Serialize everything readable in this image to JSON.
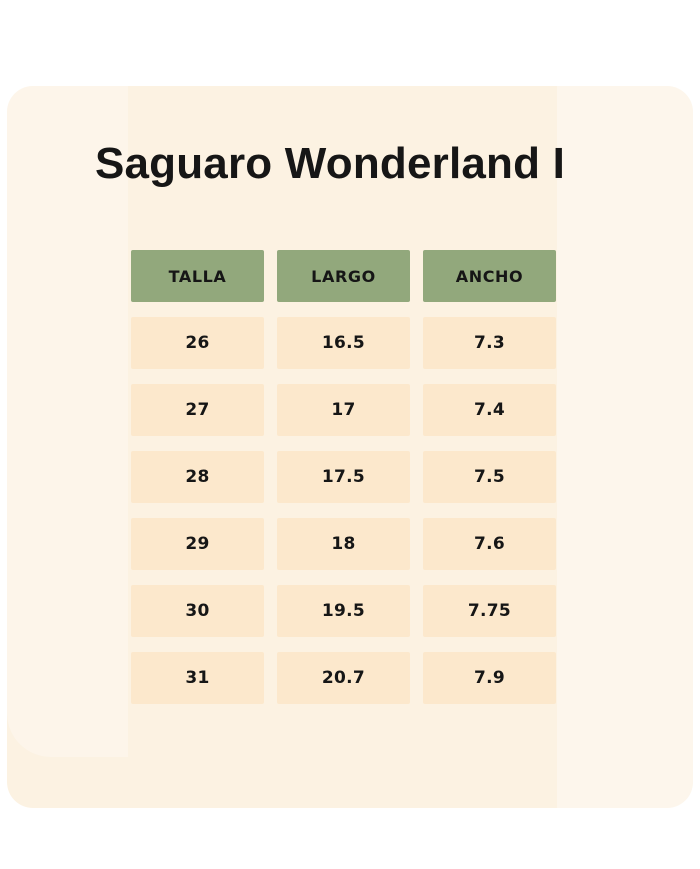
{
  "chart_data": {
    "type": "table",
    "title": "Saguaro Wonderland I",
    "columns": [
      "TALLA",
      "LARGO",
      "ANCHO"
    ],
    "rows": [
      [
        "26",
        "16.5",
        "7.3"
      ],
      [
        "27",
        "17",
        "7.4"
      ],
      [
        "28",
        "17.5",
        "7.5"
      ],
      [
        "29",
        "18",
        "7.6"
      ],
      [
        "30",
        "19.5",
        "7.75"
      ],
      [
        "31",
        "20.7",
        "7.9"
      ]
    ]
  },
  "colors": {
    "page_background": "#FFFFFF",
    "card_background": "#FCF2E2",
    "header_cell_background": "#92A87C",
    "data_cell_background": "#FCE8CC",
    "text": "#161616"
  }
}
